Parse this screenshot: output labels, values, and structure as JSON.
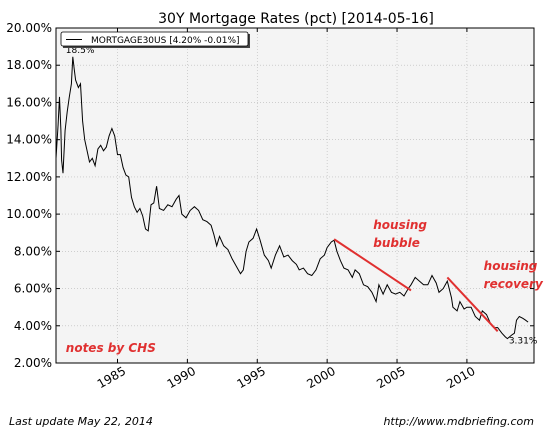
{
  "chart_data": {
    "type": "line",
    "title": "30Y Mortgage Rates (pct) [2014-05-16]",
    "xlabel": "",
    "ylabel": "",
    "xlim": [
      1980.6,
      2014.8
    ],
    "ylim": [
      2.0,
      20.0
    ],
    "xticks": [
      1985,
      1990,
      1995,
      2000,
      2005,
      2010
    ],
    "xtick_labels": [
      "1985",
      "1990",
      "1995",
      "2000",
      "2005",
      "2010"
    ],
    "yticks": [
      2,
      4,
      6,
      8,
      10,
      12,
      14,
      16,
      18,
      20
    ],
    "ytick_labels": [
      "2.00%",
      "4.00%",
      "6.00%",
      "8.00%",
      "10.00%",
      "12.00%",
      "14.00%",
      "16.00%",
      "18.00%",
      "20.00%"
    ],
    "grid": true,
    "legend_position": "top-left",
    "series": [
      {
        "name": "MORTGAGE30US [4.20% -0.01%]",
        "color": "#000000",
        "points": [
          [
            1980.6,
            13.0
          ],
          [
            1980.75,
            14.8
          ],
          [
            1980.85,
            16.3
          ],
          [
            1980.95,
            14.5
          ],
          [
            1981.0,
            12.9
          ],
          [
            1981.1,
            12.2
          ],
          [
            1981.25,
            14.5
          ],
          [
            1981.4,
            15.5
          ],
          [
            1981.55,
            16.3
          ],
          [
            1981.7,
            17.0
          ],
          [
            1981.8,
            18.45
          ],
          [
            1981.9,
            17.8
          ],
          [
            1982.0,
            17.2
          ],
          [
            1982.2,
            16.8
          ],
          [
            1982.35,
            17.0
          ],
          [
            1982.5,
            15.0
          ],
          [
            1982.65,
            14.0
          ],
          [
            1982.8,
            13.5
          ],
          [
            1983.0,
            12.8
          ],
          [
            1983.2,
            13.0
          ],
          [
            1983.4,
            12.6
          ],
          [
            1983.6,
            13.5
          ],
          [
            1983.8,
            13.7
          ],
          [
            1984.0,
            13.4
          ],
          [
            1984.2,
            13.6
          ],
          [
            1984.4,
            14.2
          ],
          [
            1984.6,
            14.6
          ],
          [
            1984.8,
            14.2
          ],
          [
            1985.0,
            13.2
          ],
          [
            1985.2,
            13.2
          ],
          [
            1985.4,
            12.5
          ],
          [
            1985.6,
            12.1
          ],
          [
            1985.8,
            12.0
          ],
          [
            1986.0,
            10.9
          ],
          [
            1986.2,
            10.4
          ],
          [
            1986.4,
            10.1
          ],
          [
            1986.6,
            10.3
          ],
          [
            1986.8,
            9.9
          ],
          [
            1987.0,
            9.2
          ],
          [
            1987.2,
            9.1
          ],
          [
            1987.4,
            10.5
          ],
          [
            1987.6,
            10.6
          ],
          [
            1987.8,
            11.5
          ],
          [
            1988.0,
            10.3
          ],
          [
            1988.3,
            10.2
          ],
          [
            1988.6,
            10.5
          ],
          [
            1988.9,
            10.4
          ],
          [
            1989.2,
            10.8
          ],
          [
            1989.4,
            11.0
          ],
          [
            1989.6,
            10.0
          ],
          [
            1989.9,
            9.8
          ],
          [
            1990.2,
            10.2
          ],
          [
            1990.5,
            10.4
          ],
          [
            1990.8,
            10.2
          ],
          [
            1991.1,
            9.7
          ],
          [
            1991.4,
            9.6
          ],
          [
            1991.7,
            9.4
          ],
          [
            1991.9,
            8.9
          ],
          [
            1992.1,
            8.3
          ],
          [
            1992.3,
            8.8
          ],
          [
            1992.6,
            8.3
          ],
          [
            1992.9,
            8.1
          ],
          [
            1993.2,
            7.6
          ],
          [
            1993.5,
            7.2
          ],
          [
            1993.8,
            6.8
          ],
          [
            1994.0,
            7.0
          ],
          [
            1994.2,
            8.0
          ],
          [
            1994.4,
            8.5
          ],
          [
            1994.7,
            8.7
          ],
          [
            1994.95,
            9.2
          ],
          [
            1995.2,
            8.6
          ],
          [
            1995.5,
            7.8
          ],
          [
            1995.8,
            7.5
          ],
          [
            1996.0,
            7.1
          ],
          [
            1996.3,
            7.8
          ],
          [
            1996.6,
            8.3
          ],
          [
            1996.9,
            7.7
          ],
          [
            1997.2,
            7.8
          ],
          [
            1997.5,
            7.5
          ],
          [
            1997.8,
            7.3
          ],
          [
            1998.0,
            7.0
          ],
          [
            1998.3,
            7.1
          ],
          [
            1998.6,
            6.8
          ],
          [
            1998.9,
            6.7
          ],
          [
            1999.2,
            7.0
          ],
          [
            1999.5,
            7.6
          ],
          [
            1999.8,
            7.8
          ],
          [
            2000.0,
            8.2
          ],
          [
            2000.3,
            8.5
          ],
          [
            2000.5,
            8.6
          ],
          [
            2000.7,
            8.0
          ],
          [
            2000.95,
            7.5
          ],
          [
            2001.2,
            7.1
          ],
          [
            2001.5,
            7.0
          ],
          [
            2001.8,
            6.6
          ],
          [
            2002.0,
            7.0
          ],
          [
            2002.3,
            6.8
          ],
          [
            2002.6,
            6.2
          ],
          [
            2002.9,
            6.1
          ],
          [
            2003.2,
            5.8
          ],
          [
            2003.5,
            5.3
          ],
          [
            2003.7,
            6.2
          ],
          [
            2004.0,
            5.7
          ],
          [
            2004.3,
            6.2
          ],
          [
            2004.6,
            5.8
          ],
          [
            2004.9,
            5.7
          ],
          [
            2005.2,
            5.8
          ],
          [
            2005.5,
            5.6
          ],
          [
            2005.8,
            6.0
          ],
          [
            2006.0,
            6.2
          ],
          [
            2006.3,
            6.6
          ],
          [
            2006.6,
            6.4
          ],
          [
            2006.9,
            6.2
          ],
          [
            2007.2,
            6.2
          ],
          [
            2007.5,
            6.7
          ],
          [
            2007.8,
            6.3
          ],
          [
            2008.0,
            5.8
          ],
          [
            2008.3,
            6.0
          ],
          [
            2008.6,
            6.4
          ],
          [
            2008.9,
            5.5
          ],
          [
            2009.0,
            5.0
          ],
          [
            2009.3,
            4.8
          ],
          [
            2009.5,
            5.3
          ],
          [
            2009.8,
            4.9
          ],
          [
            2010.0,
            5.0
          ],
          [
            2010.3,
            5.0
          ],
          [
            2010.6,
            4.5
          ],
          [
            2010.9,
            4.3
          ],
          [
            2011.1,
            4.8
          ],
          [
            2011.4,
            4.6
          ],
          [
            2011.7,
            4.1
          ],
          [
            2011.95,
            3.9
          ],
          [
            2012.2,
            3.9
          ],
          [
            2012.5,
            3.6
          ],
          [
            2012.75,
            3.4
          ],
          [
            2012.9,
            3.31
          ],
          [
            2013.2,
            3.5
          ],
          [
            2013.4,
            3.6
          ],
          [
            2013.55,
            4.3
          ],
          [
            2013.75,
            4.5
          ],
          [
            2014.0,
            4.4
          ],
          [
            2014.2,
            4.3
          ],
          [
            2014.38,
            4.2
          ]
        ]
      }
    ],
    "annotations": [
      {
        "text": "housing bubble",
        "lines": [
          "housing",
          "bubble"
        ],
        "color": "#e03030",
        "at": [
          2003.3,
          9.2
        ]
      },
      {
        "text": "housing recovery",
        "lines": [
          "housing",
          "recovery"
        ],
        "color": "#e03030",
        "at": [
          2011.2,
          7.0
        ]
      },
      {
        "text": "notes by CHS",
        "color": "#e03030",
        "at": [
          1981.3,
          2.6
        ]
      },
      {
        "text": "18.5%",
        "color": "#000000",
        "at": [
          1981.3,
          18.65
        ]
      },
      {
        "text": "3.31%",
        "color": "#000000",
        "at": [
          2013.0,
          3.05
        ]
      }
    ],
    "trend_lines": [
      {
        "name": "housing bubble trend",
        "color": "#e03030",
        "from": [
          2000.5,
          8.65
        ],
        "to": [
          2006.0,
          5.9
        ]
      },
      {
        "name": "housing recovery trend",
        "color": "#e03030",
        "from": [
          2008.6,
          6.6
        ],
        "to": [
          2012.2,
          3.7
        ]
      }
    ]
  },
  "footer": {
    "last_update": "Last update May 22, 2014",
    "source_url": "http://www.mdbriefing.com"
  }
}
